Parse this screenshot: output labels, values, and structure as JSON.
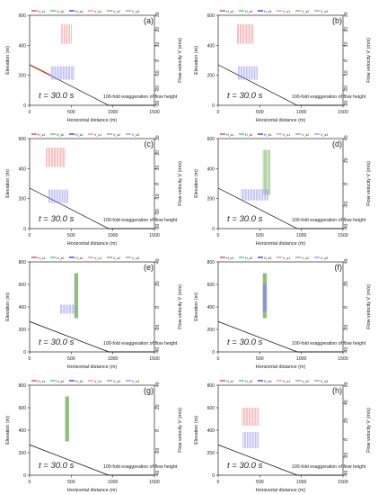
{
  "panel_labels": [
    "(a)",
    "(b)",
    "(c)",
    "(d)",
    "(e)",
    "(f)",
    "(g)",
    "(h)"
  ],
  "common": {
    "ylabel_left": "Elevation (m)",
    "ylabel_right": "Flow velocity  V  (m/s)",
    "xlabel": "Horizontal distance (m)",
    "time_text": "t = 30.0  s",
    "exaggeration_text": "100-fold exaggeration of flow height",
    "legend_h": [
      "H_s1",
      "H_s2",
      "H_s3"
    ],
    "legend_v": [
      "V_s1",
      "V_s2",
      "V_s3"
    ],
    "colors": {
      "phase1": "#c0392b",
      "phase2": "#2ecc40",
      "phase3": "#2222cc",
      "velocity1": "#f08080",
      "velocity2": "#6aa84f",
      "velocity3": "#8888ee",
      "terrain": "#000000"
    }
  },
  "chart_data": [
    {
      "type": "line",
      "panel": "(a)",
      "xlim": [
        0,
        1500
      ],
      "x_ticks": [
        0,
        500,
        1000,
        1500
      ],
      "ylim": [
        0,
        600
      ],
      "y_ticks": [
        0,
        200,
        400,
        600
      ],
      "vlim": [
        -30,
        30
      ],
      "v_ticks": [
        -30,
        -20,
        -10,
        0,
        10,
        20,
        30
      ],
      "terrain": {
        "x": [
          0,
          950,
          1500
        ],
        "y": [
          270,
          0,
          0
        ]
      },
      "series": [
        {
          "name": "H_s1",
          "x_range": [
            0,
            250
          ],
          "elevation": [
            270,
            200
          ]
        },
        {
          "name": "V_s1",
          "x_range": [
            380,
            500
          ],
          "velocity": [
            11,
            24
          ]
        },
        {
          "name": "V_s3",
          "x_range": [
            260,
            530
          ],
          "velocity": [
            -13,
            -4
          ]
        }
      ]
    },
    {
      "type": "line",
      "panel": "(b)",
      "xlim": [
        0,
        1500
      ],
      "x_ticks": [
        0,
        500,
        1000,
        1500
      ],
      "ylim": [
        0,
        600
      ],
      "y_ticks": [
        0,
        200,
        400,
        600
      ],
      "vlim": [
        -30,
        30
      ],
      "v_ticks": [
        -30,
        -20,
        -10,
        0,
        10,
        20,
        30
      ],
      "terrain": {
        "x": [
          0,
          950,
          1500
        ],
        "y": [
          270,
          0,
          0
        ]
      },
      "series": [
        {
          "name": "V_s1",
          "x_range": [
            230,
            420
          ],
          "velocity": [
            11,
            24
          ]
        },
        {
          "name": "V_s3",
          "x_range": [
            240,
            470
          ],
          "velocity": [
            -13,
            -4
          ]
        }
      ]
    },
    {
      "type": "line",
      "panel": "(c)",
      "xlim": [
        0,
        1500
      ],
      "x_ticks": [
        0,
        500,
        1000,
        1500
      ],
      "ylim": [
        0,
        600
      ],
      "y_ticks": [
        0,
        200,
        400,
        600
      ],
      "vlim": [
        -30,
        30
      ],
      "v_ticks": [
        -30,
        -20,
        -10,
        0,
        10,
        20,
        30
      ],
      "terrain": {
        "x": [
          0,
          950,
          1500
        ],
        "y": [
          270,
          0,
          0
        ]
      },
      "series": [
        {
          "name": "V_s1",
          "x_range": [
            200,
            420
          ],
          "velocity": [
            11,
            24
          ]
        },
        {
          "name": "V_s3",
          "x_range": [
            230,
            460
          ],
          "velocity": [
            -13,
            -4
          ]
        }
      ]
    },
    {
      "type": "line",
      "panel": "(d)",
      "xlim": [
        0,
        1500
      ],
      "x_ticks": [
        0,
        500,
        1000,
        1500
      ],
      "ylim": [
        0,
        600
      ],
      "y_ticks": [
        0,
        200,
        400,
        600
      ],
      "vlim": [
        -40,
        40
      ],
      "v_ticks": [
        -40,
        -20,
        0,
        20,
        40
      ],
      "terrain": {
        "x": [
          0,
          950,
          1500
        ],
        "y": [
          270,
          0,
          0
        ]
      },
      "series": [
        {
          "name": "V_s2",
          "x_range": [
            540,
            620
          ],
          "velocity": [
            -10,
            30
          ]
        },
        {
          "name": "V_s3",
          "x_range": [
            280,
            600
          ],
          "velocity": [
            -15,
            -5
          ]
        }
      ]
    },
    {
      "type": "line",
      "panel": "(e)",
      "xlim": [
        0,
        1500
      ],
      "x_ticks": [
        0,
        500,
        1000,
        1500
      ],
      "ylim": [
        0,
        800
      ],
      "y_ticks": [
        0,
        200,
        400,
        600,
        800
      ],
      "vlim": [
        -40,
        40
      ],
      "v_ticks": [
        -40,
        -20,
        0,
        20,
        40
      ],
      "terrain": {
        "x": [
          0,
          950,
          1500
        ],
        "y": [
          270,
          0,
          0
        ]
      },
      "series": [
        {
          "name": "V_s2",
          "x_range": [
            540,
            580
          ],
          "velocity": [
            -10,
            30
          ]
        },
        {
          "name": "V_s3",
          "x_range": [
            370,
            540
          ],
          "velocity": [
            -6,
            2
          ]
        }
      ]
    },
    {
      "type": "line",
      "panel": "(f)",
      "xlim": [
        0,
        1500
      ],
      "x_ticks": [
        0,
        500,
        1000,
        1500
      ],
      "ylim": [
        0,
        800
      ],
      "y_ticks": [
        0,
        200,
        400,
        600,
        800
      ],
      "vlim": [
        -40,
        40
      ],
      "v_ticks": [
        -40,
        -20,
        0,
        20,
        40
      ],
      "terrain": {
        "x": [
          0,
          950,
          1500
        ],
        "y": [
          270,
          0,
          0
        ]
      },
      "series": [
        {
          "name": "V_s2",
          "x_range": [
            540,
            580
          ],
          "velocity": [
            -10,
            30
          ]
        },
        {
          "name": "V_s3",
          "x_range": [
            540,
            580
          ],
          "velocity": [
            -4,
            20
          ]
        }
      ]
    },
    {
      "type": "line",
      "panel": "(g)",
      "xlim": [
        0,
        1500
      ],
      "x_ticks": [
        0,
        500,
        1000,
        1500
      ],
      "ylim": [
        0,
        800
      ],
      "y_ticks": [
        0,
        200,
        400,
        600,
        800
      ],
      "vlim": [
        -40,
        40
      ],
      "v_ticks": [
        -40,
        -20,
        0,
        20,
        40
      ],
      "terrain": {
        "x": [
          0,
          950,
          1500
        ],
        "y": [
          270,
          0,
          0
        ]
      },
      "series": [
        {
          "name": "V_s2",
          "x_range": [
            430,
            470
          ],
          "velocity": [
            -10,
            30
          ]
        }
      ]
    },
    {
      "type": "line",
      "panel": "(h)",
      "xlim": [
        0,
        1500
      ],
      "x_ticks": [
        0,
        500,
        1000,
        1500
      ],
      "ylim": [
        0,
        800
      ],
      "y_ticks": [
        0,
        200,
        400,
        600,
        800
      ],
      "vlim": [
        -40,
        60
      ],
      "v_ticks": [
        -40,
        -20,
        0,
        20,
        40,
        60
      ],
      "terrain": {
        "x": [
          0,
          950,
          1500
        ],
        "y": [
          270,
          0,
          0
        ]
      },
      "series": [
        {
          "name": "V_s1",
          "x_range": [
            290,
            480
          ],
          "velocity": [
            15,
            35
          ]
        },
        {
          "name": "V_s3",
          "x_range": [
            300,
            480
          ],
          "velocity": [
            -10,
            8
          ]
        }
      ]
    }
  ]
}
